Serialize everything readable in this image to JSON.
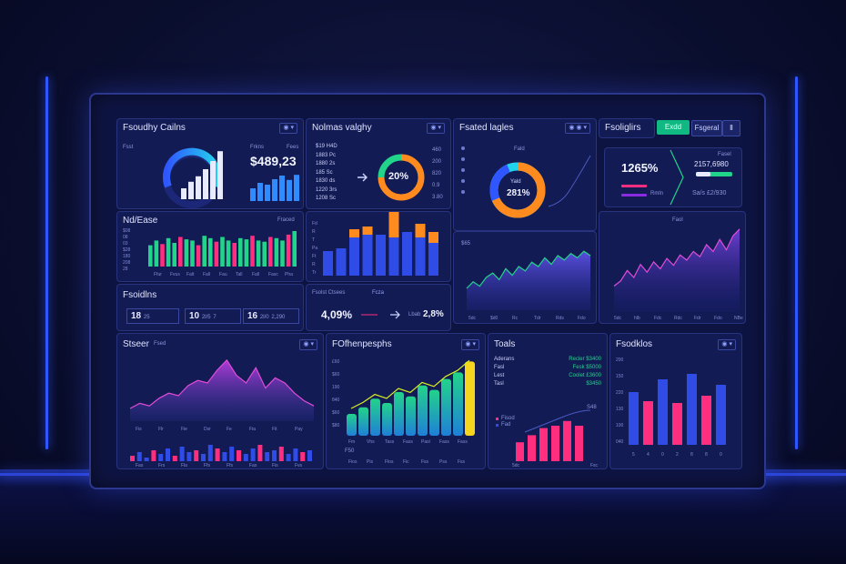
{
  "colors": {
    "accent_cyan": "#22d3ee",
    "accent_pink": "#ff2e7e",
    "accent_green": "#22d38a",
    "accent_orange": "#ff8a1e",
    "accent_blue": "#2f56ff",
    "accent_purple": "#8a2be2",
    "panel": "#131b55"
  },
  "header": {
    "btn_primary": "Exdd",
    "btn_secondary": "Fsgeral",
    "btn_icon": "Ⅱ"
  },
  "panels": {
    "p1": {
      "title": "Fsoudhy Cailns",
      "sub": "Fsst",
      "stat_label": "Frkns",
      "stat_label2": "Fees",
      "value": "$489,23"
    },
    "p2": {
      "title": "Nolmas valghy",
      "list": [
        "$19 H4D",
        "1883 Pc",
        "1880 2s",
        "185 Sc",
        "1830 ds",
        "1220 3rs",
        "1208 Sc"
      ],
      "gauge": "20%",
      "right": [
        "460",
        "200",
        "820",
        "0.9",
        "3.80"
      ]
    },
    "p3": {
      "title": "Fsated lagles",
      "sub": "Fald",
      "gauge_label": "Yald",
      "gauge": "281%"
    },
    "p4": {
      "title": "Fsoliglirs",
      "value1": "1265%",
      "value2": "2157,6980",
      "val2_label": "Fasel",
      "bottom1": "Rmln",
      "bottom2": "Sa/s £2/930"
    },
    "p5": {
      "title": "Nd/Ease",
      "legend": "Fraced",
      "rows": [
        "$08",
        "08",
        "03",
        "$28",
        "180",
        "208",
        "28"
      ],
      "xticks": [
        "Ffur",
        "Fvus",
        "Falt",
        "Fall",
        "Fau",
        "Tall",
        "Fall",
        "Fasc",
        "Pha"
      ]
    },
    "p6": {
      "rows": [
        "Fd",
        "R",
        "T",
        "Pa",
        "Ft",
        "R",
        "Tr"
      ]
    },
    "p7": {
      "caption": "$65",
      "xticks": [
        "5dc",
        "$d0",
        "Rc",
        "Tdr",
        "Rds",
        "Fdo"
      ]
    },
    "p8": {
      "legend": "Faol",
      "xticks": [
        "5dc",
        "hlb",
        "Fdc",
        "Rdc",
        "Fdr",
        "Fdo",
        "NBe"
      ]
    },
    "p9": {
      "title": "Fsoidlns",
      "k1": "18",
      "k1b": "25",
      "k2": "10",
      "k2b": "2l/5",
      "k2c": "7",
      "k3": "16",
      "k3b": "2l/0",
      "k3c": "2,290"
    },
    "p10": {
      "label": "Fsolst Ctsees",
      "tag": "Fcza",
      "value": "4,09%",
      "value2": "2,8%",
      "value2_label": "Lbab"
    },
    "p11": {
      "title": "Stseer",
      "tag": "Fsed",
      "xticks": [
        "Fis",
        "Flr",
        "Fie",
        "Dsr",
        "Fe",
        "Fia",
        "Fit",
        "Pay"
      ],
      "xticks2": [
        "Fas",
        "Frs",
        "Fla",
        "Ffs",
        "Ffs",
        "Fas",
        "Fis",
        "Fvs"
      ]
    },
    "p12": {
      "title": "FOfhenpesphs",
      "rows": [
        "£60",
        "$60",
        "190",
        "840",
        "$60",
        "$80"
      ],
      "xticks": [
        "Fm",
        "Vhs",
        "Tass",
        "Fass",
        "Pasl",
        "Fass",
        "Fass"
      ],
      "caption": "F50",
      "xticks2": [
        "Fios",
        "Pis",
        "Flos",
        "Fic",
        "Fss",
        "Pss",
        "Fss"
      ]
    },
    "p13": {
      "title": "Toals",
      "rows": [
        {
          "l": "Aderans",
          "v": "Recler $3400"
        },
        {
          "l": "Fasl",
          "v": "Fesk $5000"
        },
        {
          "l": "Lest",
          "v": "Coolet £3600"
        },
        {
          "l": "Tasl",
          "v": "$3450"
        }
      ],
      "leg1": "Fisod",
      "leg2": "Fad",
      "leg3": "S48",
      "xticks": [
        "5dc",
        "",
        "",
        "",
        "",
        "Fsc"
      ]
    },
    "p14": {
      "title": "Fsodklos",
      "rows": [
        "200",
        "150",
        "220",
        "130",
        "100",
        "040"
      ],
      "xticks": [
        "5",
        "4",
        "0",
        "2",
        "8",
        "8",
        "0"
      ]
    }
  },
  "chart_data": [
    {
      "type": "bar",
      "panel": "p1",
      "values": [
        20,
        32,
        42,
        55,
        70,
        88
      ],
      "color": "#e8eaff"
    },
    {
      "type": "bar",
      "panel": "p1b",
      "values": [
        35,
        50,
        45,
        60,
        70,
        58,
        72
      ],
      "color": "#2f8bff"
    },
    {
      "type": "bar",
      "panel": "p5",
      "values": [
        18,
        22,
        19,
        24,
        20,
        25,
        23,
        22,
        18,
        26,
        24,
        21,
        25,
        22,
        20,
        24,
        23,
        26,
        22,
        21,
        25,
        24,
        22,
        27,
        30
      ],
      "colors": [
        "#22d38a",
        "#ff2e7e"
      ]
    },
    {
      "type": "bar",
      "panel": "p6",
      "series": [
        {
          "name": "blue",
          "values": [
            18,
            20,
            28,
            30,
            30,
            28,
            32,
            28,
            24
          ]
        },
        {
          "name": "orange",
          "values": [
            0,
            0,
            6,
            6,
            0,
            20,
            0,
            10,
            8
          ]
        }
      ]
    },
    {
      "type": "area",
      "panel": "p7",
      "values": [
        20,
        26,
        22,
        30,
        34,
        28,
        38,
        32,
        40,
        36,
        44,
        40,
        48,
        42,
        50,
        46,
        52,
        48,
        54,
        50
      ]
    },
    {
      "type": "area",
      "panel": "p8",
      "values": [
        30,
        36,
        48,
        40,
        55,
        46,
        58,
        50,
        62,
        54,
        66,
        60,
        70,
        64,
        78,
        70,
        84,
        72,
        88,
        96
      ]
    },
    {
      "type": "area",
      "panel": "p11",
      "values": [
        10,
        14,
        12,
        18,
        22,
        20,
        28,
        32,
        30,
        40,
        48,
        36,
        30,
        42,
        26,
        34,
        30,
        22,
        16,
        12
      ]
    },
    {
      "type": "bar",
      "panel": "p11b",
      "values": [
        6,
        10,
        4,
        12,
        8,
        14,
        6,
        16,
        10,
        12,
        8,
        18,
        14,
        10,
        16,
        12,
        8,
        14,
        18,
        10,
        12,
        16,
        8,
        14,
        10,
        12
      ]
    },
    {
      "type": "bar",
      "panel": "p12",
      "values": [
        20,
        26,
        34,
        30,
        40,
        36,
        46,
        42,
        52,
        58,
        68
      ],
      "color": "#22d38a"
    },
    {
      "type": "bar",
      "panel": "p13",
      "values": [
        16,
        22,
        28,
        30,
        34,
        30
      ],
      "color": "#ff2e7e"
    },
    {
      "type": "bar",
      "panel": "p14",
      "values": [
        58,
        48,
        72,
        46,
        78,
        54,
        66
      ],
      "colors": [
        "#2f4de6",
        "#ff2e7e"
      ]
    }
  ]
}
